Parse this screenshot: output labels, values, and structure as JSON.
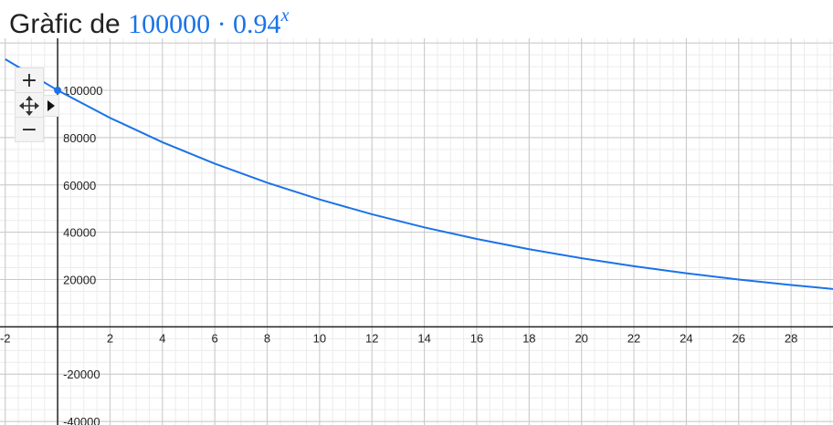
{
  "header": {
    "prefix": "Gràfic de",
    "formula_base": "100000 · 0.94",
    "formula_exponent": "x"
  },
  "controls": {
    "zoom_in_symbol": "+",
    "zoom_out_symbol": "−",
    "pan_icon": "pan-move-icon",
    "expand_icon": "triangle-right-icon"
  },
  "colors": {
    "curve": "#1a73e8",
    "grid_major": "#c8c8c8",
    "grid_minor": "#ececec",
    "axis": "#222222"
  },
  "chart_data": {
    "type": "line",
    "function": "100000 * 0.94^x",
    "xlim": [
      -2.2,
      29.6
    ],
    "ylim": [
      -41500,
      122000
    ],
    "x_ticks": [
      -2,
      2,
      4,
      6,
      8,
      10,
      12,
      14,
      16,
      18,
      20,
      22,
      24,
      26,
      28
    ],
    "y_ticks": [
      100000,
      80000,
      60000,
      40000,
      20000,
      -20000,
      -40000
    ],
    "grid": true,
    "highlight_point": {
      "x": 0,
      "y": 100000
    },
    "series": [
      {
        "x": [
          -2,
          0,
          2,
          4,
          6,
          8,
          10,
          12,
          14,
          16,
          18,
          20,
          22,
          24,
          26,
          28,
          29.6
        ],
        "y": [
          113173,
          100000,
          88360,
          78075,
          68987,
          60957,
          53862,
          47592,
          42052,
          37158,
          32833,
          29011,
          25634,
          22650,
          20014,
          17684,
          16024
        ]
      }
    ]
  }
}
